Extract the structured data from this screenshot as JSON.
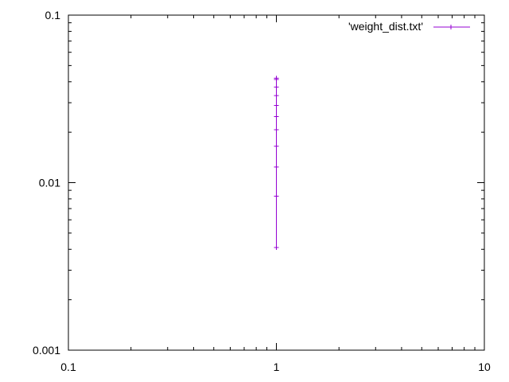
{
  "chart_data": {
    "type": "line",
    "title": "",
    "xlabel": "",
    "ylabel": "",
    "xscale": "log",
    "yscale": "log",
    "xlim": [
      0.1,
      10
    ],
    "ylim": [
      0.001,
      0.1
    ],
    "x_tick_labels": [
      {
        "value": 0.1,
        "label": "0.1"
      },
      {
        "value": 1,
        "label": "1"
      },
      {
        "value": 10,
        "label": "10"
      }
    ],
    "y_tick_labels": [
      {
        "value": 0.001,
        "label": "0.001"
      },
      {
        "value": 0.01,
        "label": "0.01"
      },
      {
        "value": 0.1,
        "label": "0.1"
      }
    ],
    "grid": false,
    "legend_position": "top-right",
    "series": [
      {
        "name": "'weight_dist.txt'",
        "color": "#9400d3",
        "marker": "plus",
        "x": [
          1,
          1,
          1,
          1,
          1,
          1,
          1,
          1,
          1,
          1,
          1
        ],
        "y": [
          0.0041,
          0.0083,
          0.0124,
          0.0165,
          0.0207,
          0.0248,
          0.0289,
          0.0331,
          0.0372,
          0.0413,
          0.042
        ]
      }
    ]
  }
}
